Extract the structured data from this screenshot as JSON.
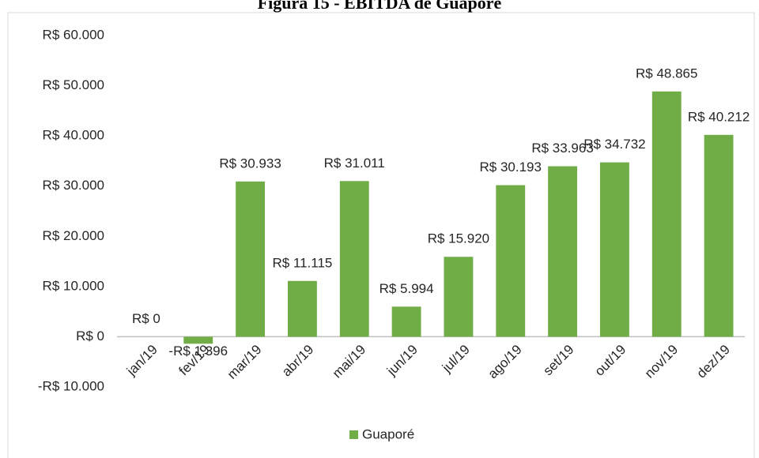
{
  "chart_data": {
    "type": "bar",
    "title": "Figura 15 - EBITDA de Guaporé",
    "categories": [
      "jan/19",
      "fev/19",
      "mar/19",
      "abr/19",
      "mai/19",
      "jun/19",
      "jul/19",
      "ago/19",
      "set/19",
      "out/19",
      "nov/19",
      "dez/19"
    ],
    "series": [
      {
        "name": "Guaporé",
        "color": "#70ad47",
        "values": [
          0,
          -1396,
          30933,
          11115,
          31011,
          5994,
          15920,
          30193,
          33963,
          34732,
          48865,
          40212
        ],
        "value_labels": [
          "R$ 0",
          "-R$ 1.396",
          "R$ 30.933",
          "R$ 11.115",
          "R$ 31.011",
          "R$ 5.994",
          "R$ 15.920",
          "R$ 30.193",
          "R$ 33.963",
          "R$ 34.732",
          "R$ 48.865",
          "R$ 40.212"
        ]
      }
    ],
    "ylim": [
      -10000,
      60000
    ],
    "yticks": [
      {
        "value": -10000,
        "label": "-R$ 10.000"
      },
      {
        "value": 0,
        "label": "R$ 0"
      },
      {
        "value": 10000,
        "label": "R$ 10.000"
      },
      {
        "value": 20000,
        "label": "R$ 20.000"
      },
      {
        "value": 30000,
        "label": "R$ 30.000"
      },
      {
        "value": 40000,
        "label": "R$ 40.000"
      },
      {
        "value": 50000,
        "label": "R$ 50.000"
      },
      {
        "value": 60000,
        "label": "R$ 60.000"
      }
    ],
    "grid": false,
    "legend": "bottom"
  }
}
